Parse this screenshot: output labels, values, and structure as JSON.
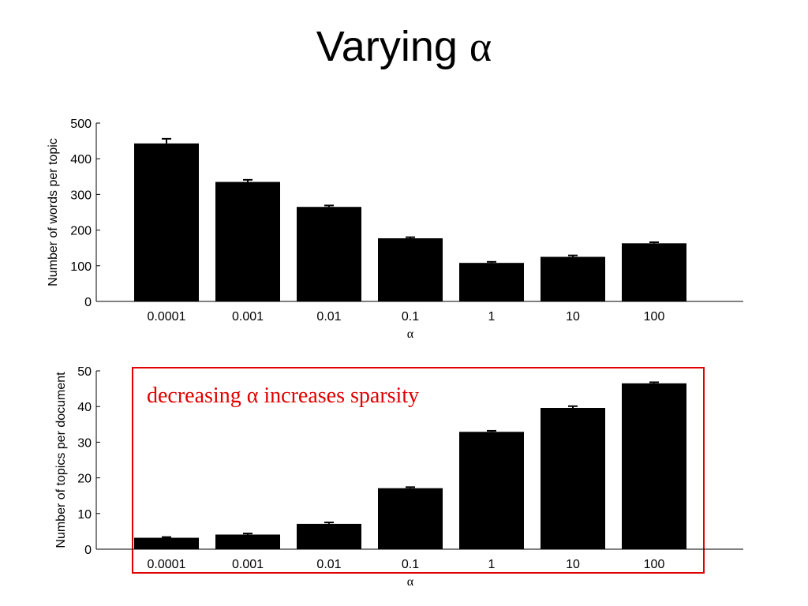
{
  "slide": {
    "title_text": "Varying",
    "title_symbol": "α"
  },
  "chart_data": [
    {
      "type": "bar",
      "categories": [
        "0.0001",
        "0.001",
        "0.01",
        "0.1",
        "1",
        "10",
        "100"
      ],
      "values": [
        443,
        335,
        265,
        177,
        108,
        125,
        163
      ],
      "errors": [
        13,
        6,
        4,
        3,
        3,
        4,
        3
      ],
      "xlabel": "α",
      "ylabel": "Number of words per topic",
      "ylim": [
        0,
        500
      ],
      "yticks": [
        0,
        100,
        200,
        300,
        400,
        500
      ],
      "bar_color": "#000000",
      "grid": false
    },
    {
      "type": "bar",
      "categories": [
        "0.0001",
        "0.001",
        "0.01",
        "0.1",
        "1",
        "10",
        "100"
      ],
      "values": [
        3.2,
        4.1,
        7.1,
        17.1,
        32.9,
        39.6,
        46.5
      ],
      "errors": [
        0.2,
        0.3,
        0.4,
        0.3,
        0.3,
        0.5,
        0.3
      ],
      "xlabel": "α",
      "ylabel": "Number of topics per document",
      "ylim": [
        0,
        50
      ],
      "yticks": [
        0,
        10,
        20,
        30,
        40,
        50
      ],
      "bar_color": "#000000",
      "grid": false,
      "annotation": {
        "text": "decreasing α increases sparsity",
        "color": "#e00000",
        "box_color": "#e00000"
      }
    }
  ]
}
